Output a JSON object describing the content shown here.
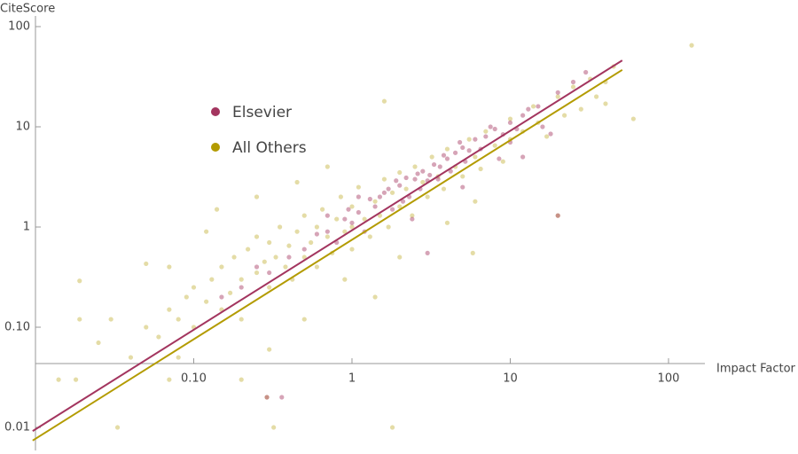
{
  "chart_data": {
    "type": "scatter",
    "x_label": "Impact Factor",
    "y_label": "CiteScore",
    "log_x": true,
    "log_y": true,
    "grid": false,
    "legend": "upper left",
    "xlim": [
      0.008,
      150
    ],
    "ylim": [
      0.006,
      150
    ],
    "xticks": [
      {
        "value": 0.1,
        "label": "0.10"
      },
      1,
      10,
      100
    ],
    "yticks": [
      {
        "value": 0.01,
        "label": "0.01"
      },
      {
        "value": 0.1,
        "label": "0.10"
      },
      1,
      10,
      100
    ],
    "series": [
      {
        "name": "Elsevier",
        "color": "#a3355f",
        "opacity": 0.45,
        "x": [
          0.5,
          0.7,
          0.9,
          1.1,
          1.3,
          1.5,
          1.7,
          2.0,
          2.2,
          2.5,
          2.8,
          3.0,
          3.3,
          3.6,
          4.0,
          4.5,
          5.0,
          5.5,
          6.0,
          7.0,
          8.0,
          9.0,
          10,
          12,
          15,
          20,
          1.2,
          1.8,
          2.3,
          0.8,
          0.6,
          0.4,
          0.3,
          0.25,
          2.6,
          3.1,
          1.6,
          1.0,
          4.2,
          5.2,
          3.8,
          2.1,
          1.4,
          0.95,
          6.5,
          7.5,
          11,
          13,
          25,
          0.2,
          0.15,
          2.4,
          5.0,
          8.5,
          12,
          20,
          3.0,
          0.36,
          0.29,
          1.9,
          2.7,
          3.5,
          4.8,
          1.1,
          0.7,
          16,
          30,
          10,
          18
        ],
        "values": [
          0.6,
          0.9,
          1.2,
          1.4,
          1.9,
          2.0,
          2.4,
          2.6,
          3.1,
          3.0,
          3.6,
          2.9,
          4.2,
          4.0,
          4.8,
          5.5,
          6.2,
          5.8,
          7.5,
          8.0,
          9.5,
          8.4,
          11,
          13,
          16,
          22,
          0.9,
          1.5,
          2.0,
          0.7,
          0.85,
          0.5,
          0.35,
          0.4,
          3.4,
          3.3,
          2.2,
          1.1,
          3.6,
          4.5,
          5.2,
          1.8,
          1.6,
          1.5,
          6.0,
          10,
          9.5,
          15,
          28,
          0.25,
          0.2,
          1.2,
          2.5,
          4.8,
          5.0,
          1.3,
          0.55,
          0.02,
          0.02,
          2.9,
          2.4,
          3.0,
          7.0,
          2.0,
          1.3,
          10,
          35,
          7.0,
          8.5
        ],
        "fit": {
          "x": [
            0.0096,
            51
          ],
          "values": [
            0.0092,
            46
          ]
        }
      },
      {
        "name": "All Others",
        "color": "#b39b00",
        "opacity": 0.35,
        "x": [
          140,
          1.6,
          0.019,
          0.019,
          0.014,
          0.018,
          0.033,
          1.8,
          0.14,
          0.29,
          0.32,
          0.08,
          0.2,
          60,
          40,
          20,
          0.03,
          0.05,
          0.025,
          0.07,
          0.04,
          0.05,
          0.06,
          0.07,
          0.08,
          0.09,
          0.1,
          0.1,
          0.12,
          0.13,
          0.15,
          0.15,
          0.17,
          0.18,
          0.2,
          0.2,
          0.22,
          0.25,
          0.25,
          0.28,
          0.3,
          0.3,
          0.33,
          0.35,
          0.38,
          0.4,
          0.42,
          0.45,
          0.5,
          0.5,
          0.55,
          0.6,
          0.6,
          0.65,
          0.7,
          0.75,
          0.8,
          0.85,
          0.9,
          1.0,
          1.0,
          1.0,
          1.1,
          1.2,
          1.3,
          1.4,
          1.5,
          1.6,
          1.7,
          1.8,
          2.0,
          2.0,
          2.2,
          2.4,
          2.5,
          2.8,
          3.0,
          3.2,
          3.5,
          3.8,
          4.0,
          4.5,
          5.0,
          5.5,
          6.0,
          6.5,
          7.0,
          8.0,
          9.0,
          10,
          10,
          12,
          14,
          15,
          17,
          20,
          22,
          25,
          28,
          32,
          35,
          40,
          45,
          0.9,
          2.0,
          4.0,
          6.0,
          0.3,
          0.5,
          1.4,
          5.8,
          0.12,
          0.07,
          0.25,
          0.45,
          0.7
        ],
        "values": [
          65,
          18,
          0.29,
          0.12,
          0.03,
          0.03,
          0.01,
          0.01,
          1.5,
          0.02,
          0.01,
          0.05,
          0.03,
          12,
          17,
          1.3,
          0.12,
          0.43,
          0.07,
          0.03,
          0.05,
          0.1,
          0.08,
          0.15,
          0.12,
          0.2,
          0.1,
          0.25,
          0.18,
          0.3,
          0.15,
          0.4,
          0.22,
          0.5,
          0.3,
          0.12,
          0.6,
          0.35,
          0.8,
          0.45,
          0.25,
          0.7,
          0.5,
          1.0,
          0.4,
          0.65,
          0.3,
          0.9,
          0.5,
          1.3,
          0.7,
          1.0,
          0.4,
          1.5,
          0.8,
          0.55,
          1.2,
          2.0,
          0.9,
          1.0,
          0.6,
          1.6,
          2.5,
          1.2,
          0.8,
          1.8,
          1.3,
          3.0,
          1.0,
          2.2,
          1.6,
          3.5,
          2.4,
          1.3,
          4.0,
          2.8,
          2.0,
          5.0,
          3.2,
          2.4,
          6.0,
          4.0,
          3.2,
          7.5,
          5.0,
          3.8,
          9.0,
          6.5,
          4.5,
          12,
          7.5,
          9.0,
          16,
          11,
          8.0,
          20,
          13,
          25,
          15,
          30,
          20,
          28,
          40,
          0.3,
          0.5,
          1.1,
          1.8,
          0.06,
          0.12,
          0.2,
          0.55,
          0.9,
          0.4,
          2.0,
          2.8,
          4.0
        ],
        "fit": {
          "x": [
            0.0096,
            51
          ],
          "values": [
            0.0074,
            37
          ]
        }
      }
    ]
  }
}
